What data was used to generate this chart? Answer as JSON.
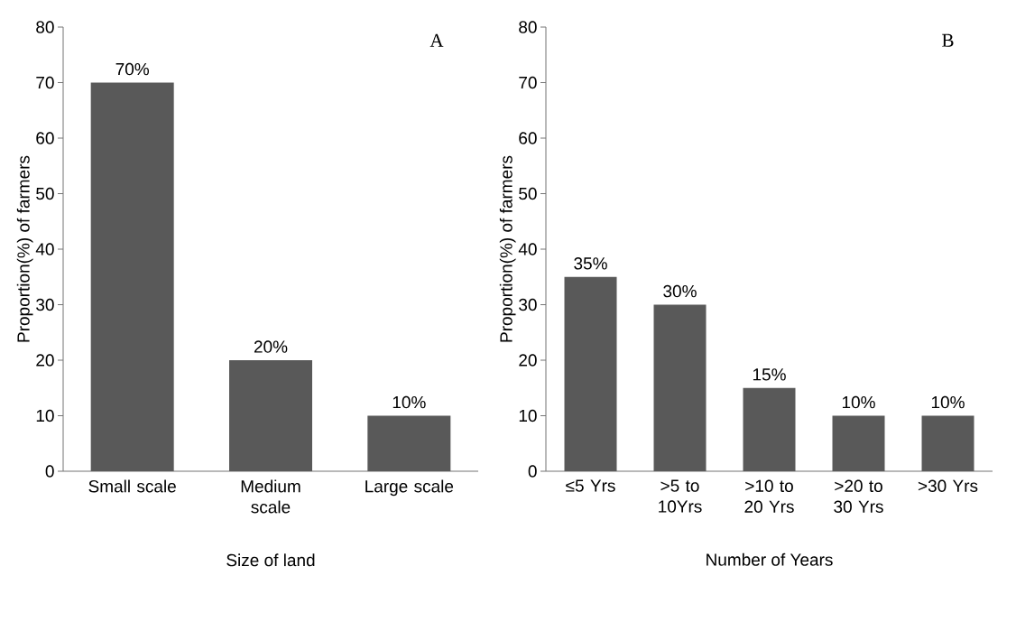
{
  "chart_data": [
    {
      "type": "bar",
      "categories": [
        "Small scale",
        "Medium scale",
        "Large scale"
      ],
      "values": [
        70,
        20,
        10
      ],
      "color": "#595959",
      "value_labels": [
        "70%",
        "20%",
        "10%"
      ],
      "xlabel": "Size of land",
      "ylabel": "Proportion(%) of farmers",
      "ylim": [
        0,
        80
      ],
      "yticks": [
        0,
        10,
        20,
        30,
        40,
        50,
        60,
        70,
        80
      ],
      "annotations": [
        "A"
      ]
    },
    {
      "type": "bar",
      "categories": [
        "≤5 Yrs",
        ">5 to 10Yrs",
        ">10 to 20 Yrs",
        ">20 to 30 Yrs",
        ">30 Yrs"
      ],
      "values": [
        35,
        30,
        15,
        10,
        10
      ],
      "color": "#595959",
      "value_labels": [
        "35%",
        "30%",
        "15%",
        "10%",
        "10%"
      ],
      "xlabel": "Number of Years",
      "ylabel": "Proportion(%) of farmers",
      "ylim": [
        0,
        80
      ],
      "yticks": [
        0,
        10,
        20,
        30,
        40,
        50,
        60,
        70,
        80
      ],
      "annotations": [
        "B"
      ]
    }
  ]
}
